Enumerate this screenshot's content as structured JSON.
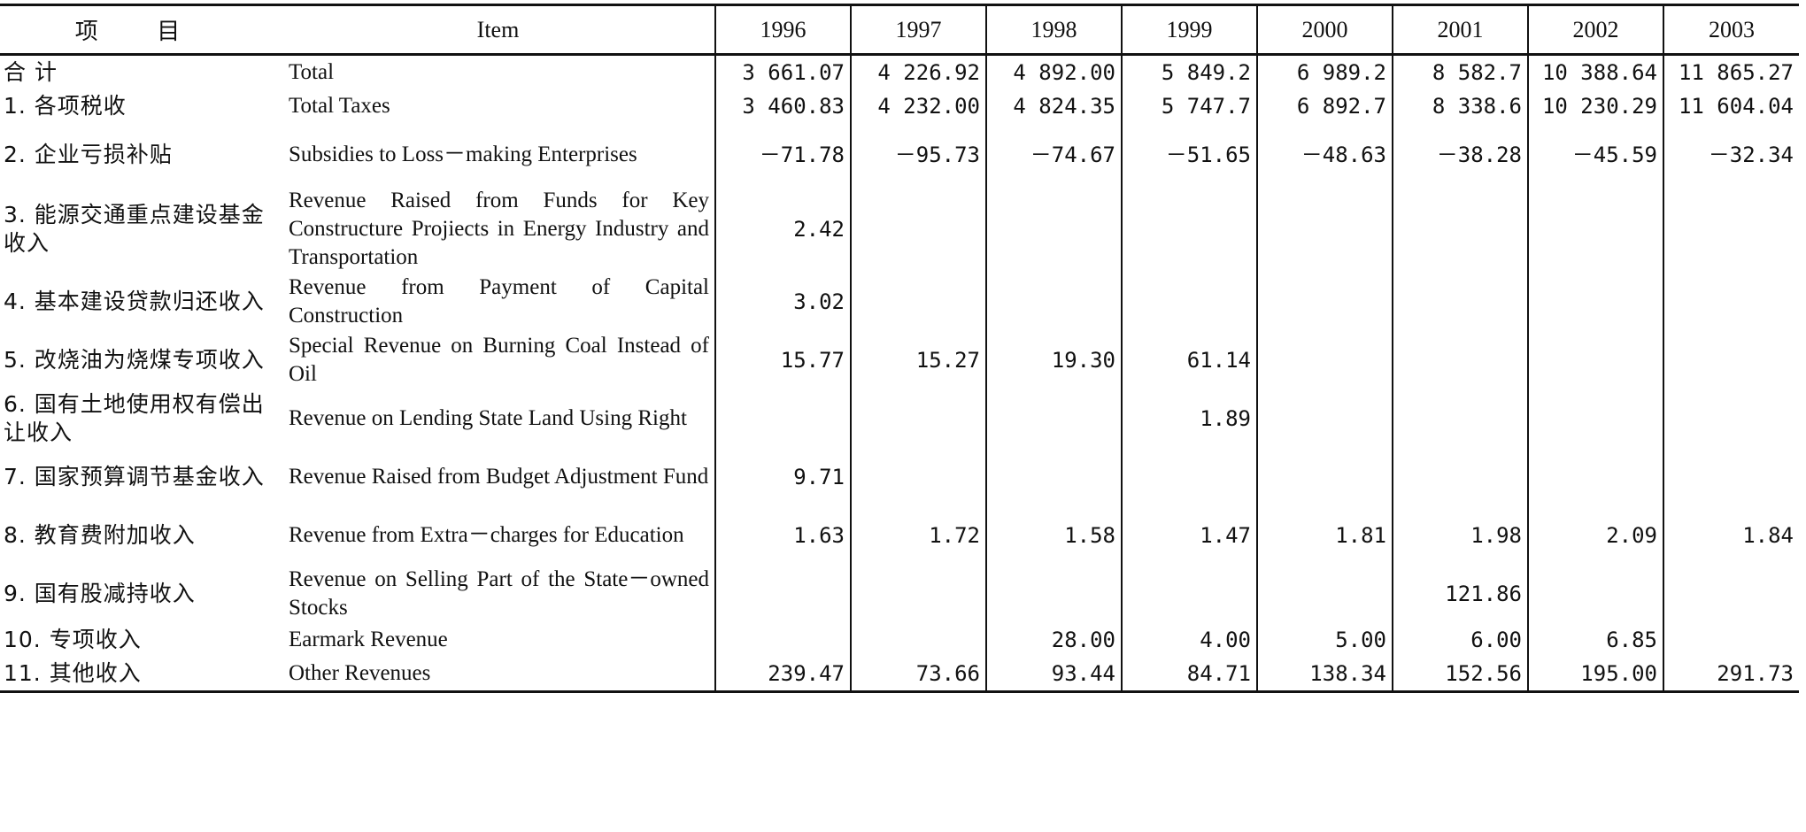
{
  "header": {
    "cn": "项 目",
    "en": "Item",
    "years": [
      "1996",
      "1997",
      "1998",
      "1999",
      "2000",
      "2001",
      "2002",
      "2003"
    ]
  },
  "rows": [
    {
      "cn": "合 计",
      "en": "Total",
      "values": [
        "3 661.07",
        "4 226.92",
        "4 892.00",
        "5 849.2",
        "6 989.2",
        "8 582.7",
        "10 388.64",
        "11 865.27"
      ]
    },
    {
      "cn": "1. 各项税收",
      "en": "Total Taxes",
      "values": [
        "3 460.83",
        "4 232.00",
        "4 824.35",
        "5 747.7",
        "6 892.7",
        "8 338.6",
        "10 230.29",
        "11 604.04"
      ]
    },
    {
      "cn": "2. 企业亏损补贴",
      "en": "Subsidies to Loss－making Enterprises",
      "values": [
        "－71.78",
        "－95.73",
        "－74.67",
        "－51.65",
        "－48.63",
        "－38.28",
        "－45.59",
        "－32.34"
      ]
    },
    {
      "cn": "3. 能源交通重点建设基金收入",
      "en": "Revenue Raised from Funds for Key Constructure Projiects in Energy Industry and Transportation",
      "values": [
        "2.42",
        "",
        "",
        "",
        "",
        "",
        "",
        ""
      ]
    },
    {
      "cn": "4. 基本建设贷款归还收入",
      "en": "Revenue from Payment of Capital Construction",
      "values": [
        "3.02",
        "",
        "",
        "",
        "",
        "",
        "",
        ""
      ]
    },
    {
      "cn": "5. 改烧油为烧煤专项收入",
      "en": "Special Revenue on Burning Coal Instead of Oil",
      "values": [
        "15.77",
        "15.27",
        "19.30",
        "61.14",
        "",
        "",
        "",
        ""
      ]
    },
    {
      "cn": "6. 国有土地使用权有偿出让收入",
      "en": "Revenue on Lending State Land Using Right",
      "values": [
        "",
        "",
        "",
        "1.89",
        "",
        "",
        "",
        ""
      ]
    },
    {
      "cn": "7. 国家预算调节基金收入",
      "en": "Revenue Raised from Budget Adjustment Fund",
      "values": [
        "9.71",
        "",
        "",
        "",
        "",
        "",
        "",
        ""
      ]
    },
    {
      "cn": "8. 教育费附加收入",
      "en": "Revenue from Extra－charges for Education",
      "values": [
        "1.63",
        "1.72",
        "1.58",
        "1.47",
        "1.81",
        "1.98",
        "2.09",
        "1.84"
      ]
    },
    {
      "cn": "9. 国有股减持收入",
      "en": "Revenue on Selling Part of the State－owned Stocks",
      "values": [
        "",
        "",
        "",
        "",
        "",
        "121.86",
        "",
        ""
      ]
    },
    {
      "cn": "10. 专项收入",
      "en": "Earmark Revenue",
      "values": [
        "",
        "",
        "28.00",
        "4.00",
        "5.00",
        "6.00",
        "6.85",
        ""
      ]
    },
    {
      "cn": "11. 其他收入",
      "en": "Other Revenues",
      "values": [
        "239.47",
        "73.66",
        "93.44",
        "84.71",
        "138.34",
        "152.56",
        "195.00",
        "291.73"
      ]
    }
  ]
}
